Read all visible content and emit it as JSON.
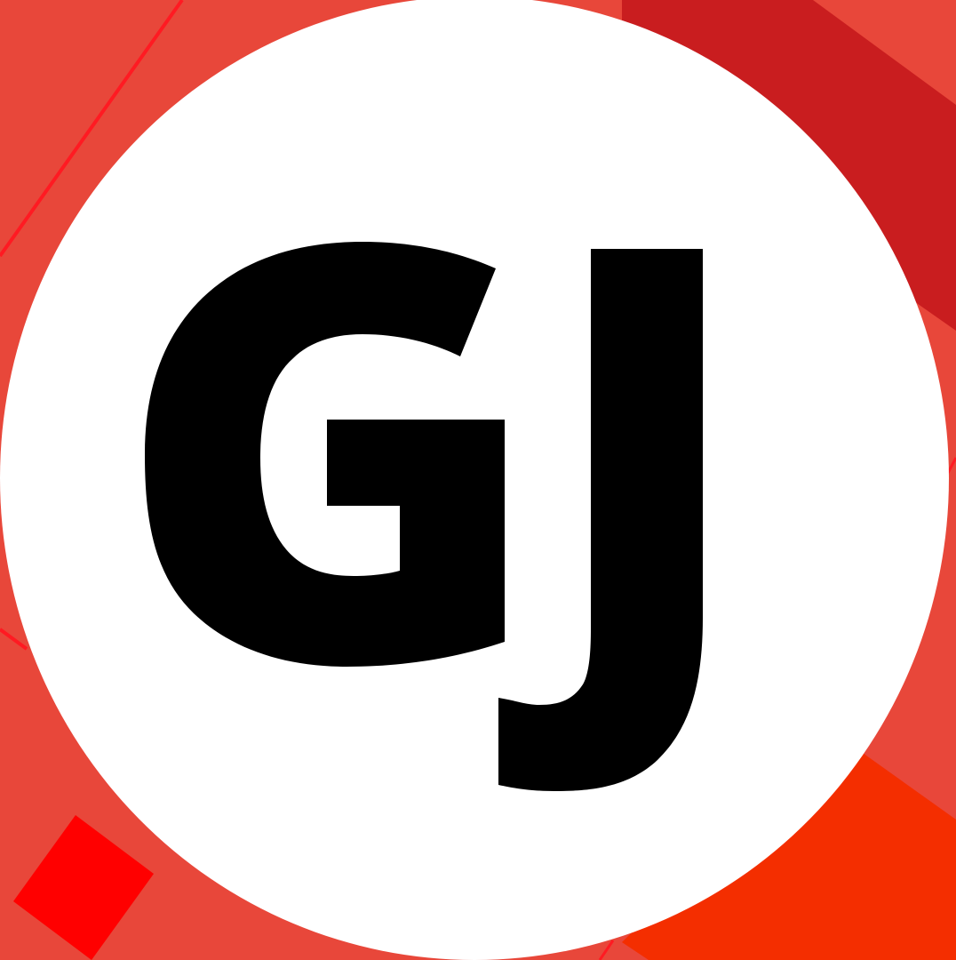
{
  "logo": {
    "text": "GJ",
    "letter_1": "G",
    "letter_2": "J"
  },
  "colors": {
    "background": "#e8473a",
    "stripe_dark": "#c91d1f",
    "stripe_orange": "#f42e00",
    "accent_red": "#ff0000",
    "line_red": "#ff1a22",
    "circle": "#ffffff",
    "glyph": "#000000"
  }
}
